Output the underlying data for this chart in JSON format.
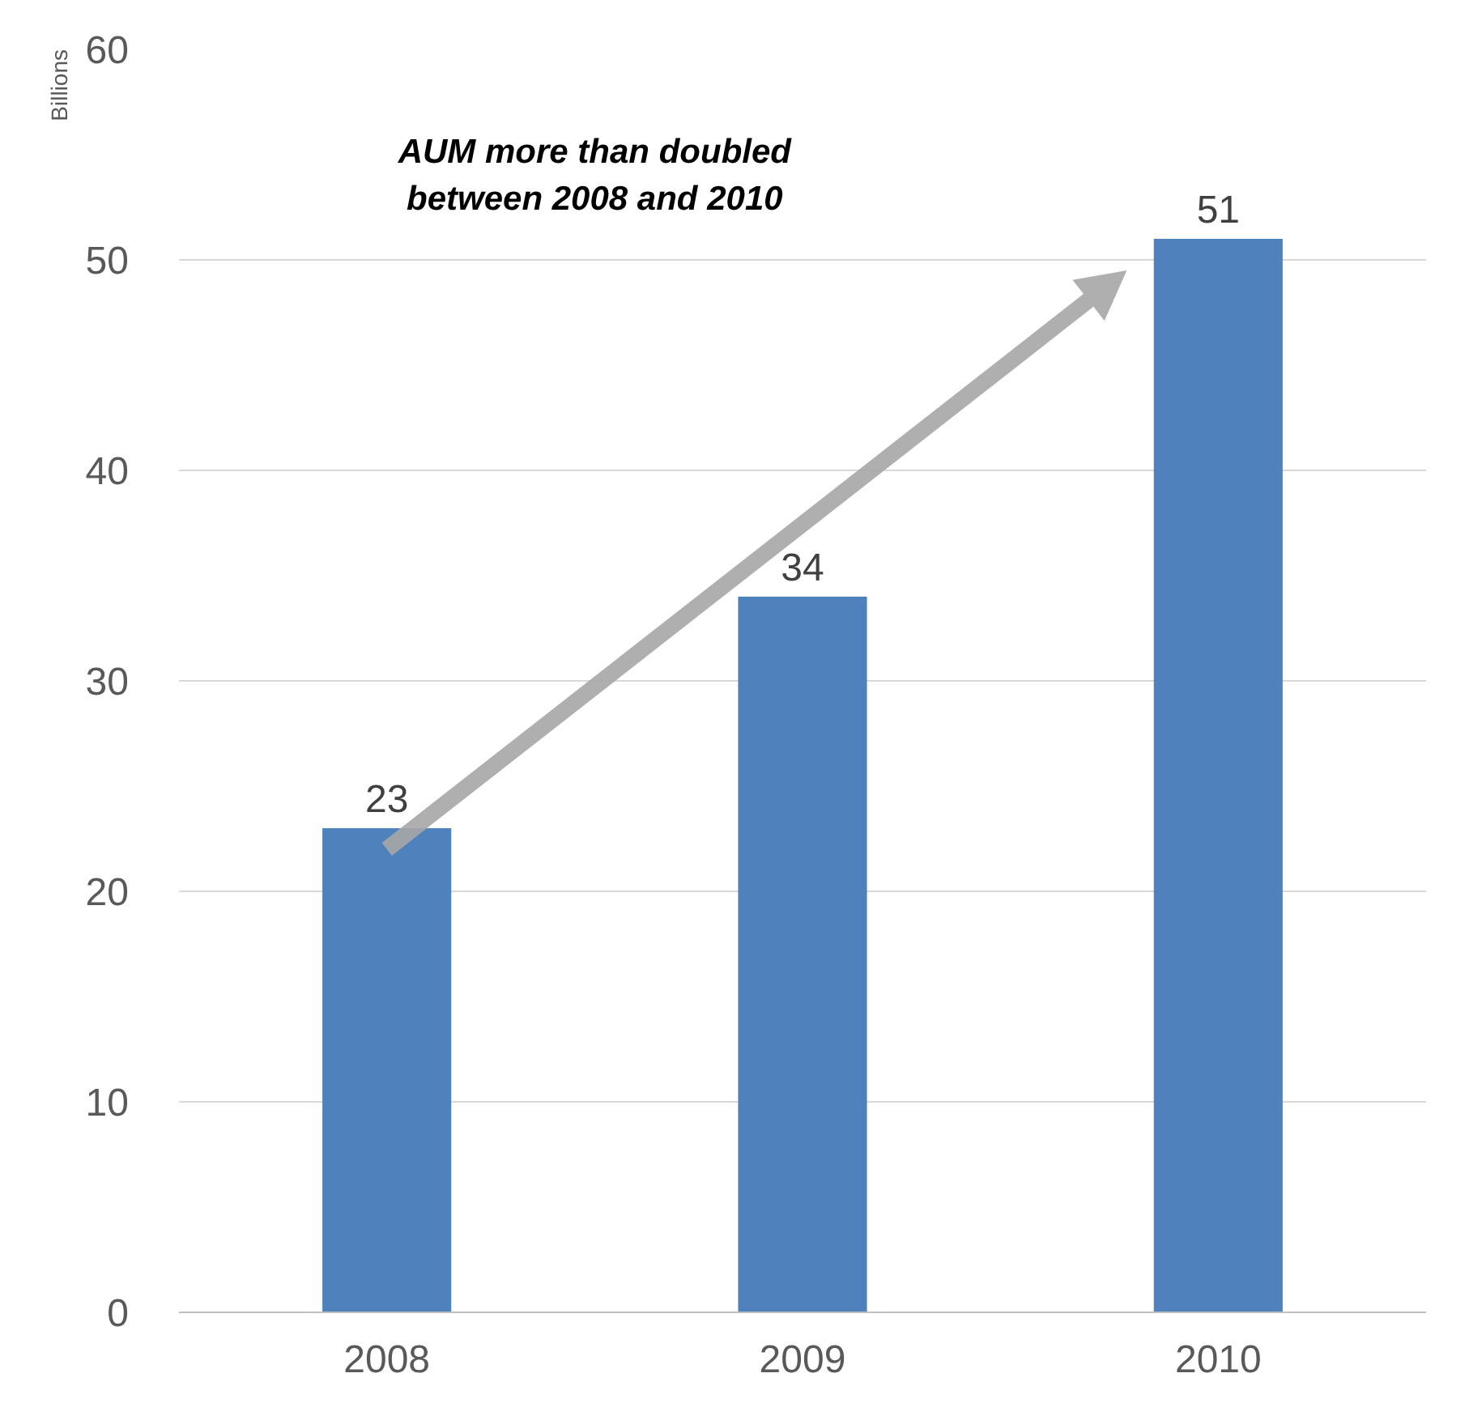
{
  "chart_data": {
    "type": "bar",
    "ylabel": "Billions",
    "categories": [
      "2008",
      "2009",
      "2010"
    ],
    "values": [
      23,
      34,
      51
    ],
    "color": "#4f81bd",
    "ylim": [
      0,
      60
    ],
    "yticks": [
      0,
      10,
      20,
      30,
      40,
      50,
      60
    ],
    "grid": "y",
    "data_labels": true,
    "annotations": [
      "AUM more than doubled\nbetween 2008 and 2010"
    ]
  }
}
